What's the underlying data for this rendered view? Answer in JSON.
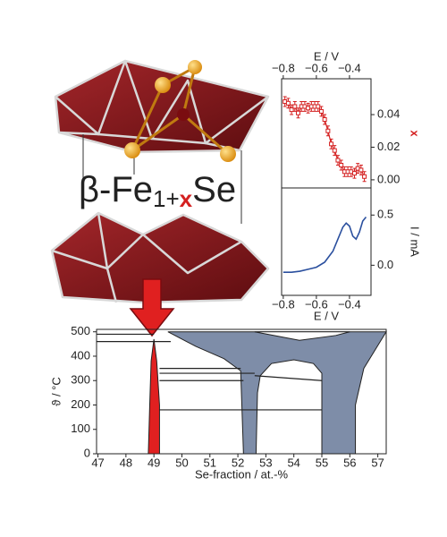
{
  "label": {
    "prefix": "β-Fe",
    "subscript": "1+",
    "x": "x",
    "suffix": "Se"
  },
  "chart_data": [
    {
      "type": "errorbar",
      "x_axis_side": "top",
      "y_axis_side": "right",
      "xlabel": "E / V",
      "ylabel": "x",
      "ylabel_color": "#d42020",
      "color": "#d42020",
      "xlim": [
        -0.81,
        -0.27
      ],
      "xticks": [
        {
          "value": -0.8,
          "label": "−0.8"
        },
        {
          "value": -0.6,
          "label": "−0.6"
        },
        {
          "value": -0.4,
          "label": "−0.4"
        }
      ],
      "ylim": [
        -0.005,
        0.062
      ],
      "yticks": [
        {
          "value": 0,
          "label": "0.00"
        },
        {
          "value": 0.02,
          "label": "0.02"
        },
        {
          "value": 0.04,
          "label": "0.04"
        }
      ],
      "x": [
        -0.79,
        -0.77,
        -0.75,
        -0.73,
        -0.71,
        -0.69,
        -0.67,
        -0.65,
        -0.63,
        -0.61,
        -0.59,
        -0.57,
        -0.55,
        -0.53,
        -0.51,
        -0.49,
        -0.47,
        -0.45,
        -0.43,
        -0.41,
        -0.39,
        -0.37,
        -0.35,
        -0.33,
        -0.31
      ],
      "values": [
        0.048,
        0.047,
        0.043,
        0.045,
        0.041,
        0.045,
        0.045,
        0.044,
        0.045,
        0.045,
        0.045,
        0.042,
        0.037,
        0.03,
        0.022,
        0.018,
        0.012,
        0.009,
        0.005,
        0.005,
        0.005,
        0.004,
        0.007,
        0.006,
        0.002
      ],
      "errors": [
        0.003,
        0.003,
        0.003,
        0.003,
        0.003,
        0.003,
        0.003,
        0.003,
        0.003,
        0.003,
        0.003,
        0.003,
        0.003,
        0.003,
        0.003,
        0.003,
        0.003,
        0.003,
        0.003,
        0.003,
        0.003,
        0.003,
        0.003,
        0.003,
        0.003
      ]
    },
    {
      "type": "line",
      "x_axis_side": "bottom",
      "y_axis_side": "right",
      "xlabel": "E / V",
      "ylabel": "I / mA",
      "color": "#2a4f9e",
      "xlim": [
        -0.81,
        -0.27
      ],
      "xticks": [
        {
          "value": -0.8,
          "label": "−0.8"
        },
        {
          "value": -0.6,
          "label": "−0.6"
        },
        {
          "value": -0.4,
          "label": "−0.4"
        }
      ],
      "ylim": [
        -0.3,
        0.77
      ],
      "yticks": [
        {
          "value": 0,
          "label": "0.0"
        },
        0.5
      ],
      "x": [
        -0.8,
        -0.75,
        -0.7,
        -0.65,
        -0.6,
        -0.55,
        -0.5,
        -0.47,
        -0.44,
        -0.42,
        -0.4,
        -0.38,
        -0.36,
        -0.34,
        -0.32,
        -0.3
      ],
      "values": [
        -0.07,
        -0.07,
        -0.06,
        -0.04,
        -0.02,
        0.03,
        0.14,
        0.26,
        0.38,
        0.42,
        0.39,
        0.29,
        0.26,
        0.33,
        0.44,
        0.48
      ]
    },
    {
      "type": "area",
      "x_axis_side": "bottom",
      "y_axis_side": "left",
      "xlabel": "Se-fraction / at.-%",
      "ylabel": "ϑ / °C",
      "xlim": [
        46.95,
        57.3
      ],
      "xticks": [
        47,
        48,
        49,
        50,
        51,
        52,
        53,
        54,
        55,
        56,
        57
      ],
      "ylim": [
        0,
        510
      ],
      "yticks": [
        0,
        100,
        200,
        300,
        400,
        500
      ],
      "regions": [
        {
          "color": "#7e8da8",
          "x": [
            49.5,
            50.5,
            51.5,
            52.1,
            52.2,
            52.65,
            52.7,
            52.8,
            53.2,
            54,
            54.7,
            55,
            55,
            56.2,
            56.2,
            56.5,
            57.3
          ],
          "y": [
            500,
            440,
            390,
            340,
            0,
            0,
            250,
            320,
            370,
            385,
            370,
            330,
            0,
            0,
            200,
            350,
            500
          ]
        },
        {
          "color": "#ffffff",
          "x": [
            52.6,
            54.2,
            55.5,
            56
          ],
          "y": [
            500,
            465,
            485,
            500
          ]
        },
        {
          "color": "#e02020",
          "x": [
            48.8,
            48.85,
            48.9,
            49.0,
            49.1,
            49.2,
            49.2
          ],
          "y": [
            0,
            200,
            380,
            470,
            380,
            200,
            0
          ]
        }
      ],
      "lines": [
        {
          "x": [
            46.95,
            49.0
          ],
          "y": [
            490,
            490
          ]
        },
        {
          "x": [
            46.95,
            49.6
          ],
          "y": [
            460,
            460
          ]
        },
        {
          "x": [
            49.2,
            52.1
          ],
          "y": [
            350,
            350
          ]
        },
        {
          "x": [
            49.2,
            52.6
          ],
          "y": [
            330,
            330
          ]
        },
        {
          "x": [
            52.6,
            55
          ],
          "y": [
            320,
            300
          ]
        },
        {
          "x": [
            49.2,
            52.2
          ],
          "y": [
            300,
            300
          ]
        },
        {
          "x": [
            49.2,
            55
          ],
          "y": [
            180,
            180
          ]
        }
      ]
    }
  ]
}
